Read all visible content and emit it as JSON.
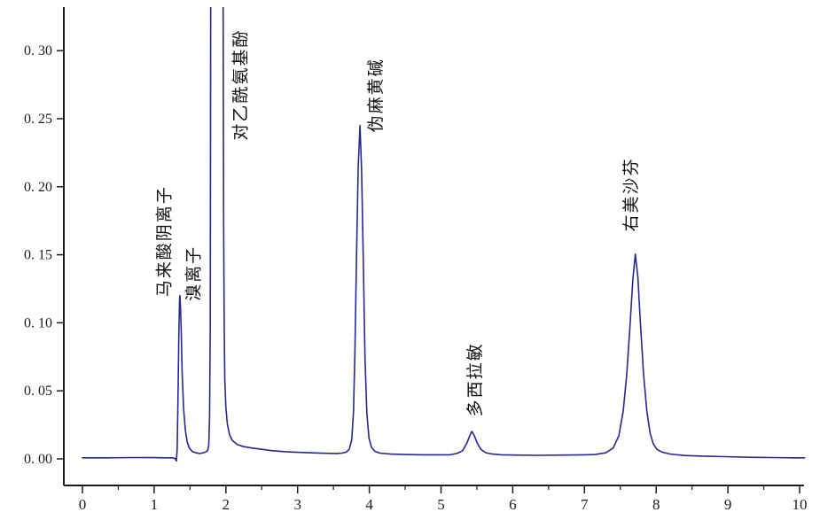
{
  "chart_data": {
    "type": "line",
    "chart_kind": "hplc-chromatogram",
    "title": "",
    "xlabel": "",
    "ylabel": "",
    "xlim": [
      0,
      10
    ],
    "ylim": [
      0,
      0.332
    ],
    "grid": false,
    "legend": "none",
    "line_color": "#262696",
    "axis_color": "#1a1a1a",
    "background": "#ffffff",
    "x_ticks": {
      "major_values": [
        0,
        1,
        2,
        3,
        4,
        5,
        6,
        7,
        8,
        9,
        10
      ],
      "major_labels": [
        "0",
        "1",
        "2",
        "3",
        "4",
        "5",
        "6",
        "7",
        "8",
        "9",
        "10"
      ],
      "minor_step": 0.5
    },
    "y_ticks": {
      "values": [
        0,
        0.05,
        0.1,
        0.15,
        0.2,
        0.25,
        0.3
      ],
      "labels": [
        "0. 00",
        "0. 05",
        "0. 10",
        "0. 15",
        "0. 20",
        "0. 25",
        "0. 30"
      ]
    },
    "peaks": [
      {
        "label": "马来酸阴离子",
        "time": 1.36,
        "height": 0.12,
        "clipped": false,
        "label_x": 1.15,
        "label_y": 0.119
      },
      {
        "label": "溴离子",
        "time": 1.45,
        "height": 0.012,
        "clipped": false,
        "label_x": 1.56,
        "label_y": 0.116
      },
      {
        "label": "对乙酰氨基酚",
        "time": 1.88,
        "height": 0.45,
        "clipped": true,
        "label_x": 2.21,
        "label_y": 0.234
      },
      {
        "label": "伪麻黄碱",
        "time": 3.87,
        "height": 0.245,
        "clipped": false,
        "label_x": 4.1,
        "label_y": 0.24
      },
      {
        "label": "多西拉敏",
        "time": 5.43,
        "height": 0.02,
        "clipped": false,
        "label_x": 5.48,
        "label_y": 0.031
      },
      {
        "label": "右美沙芬",
        "time": 7.71,
        "height": 0.15,
        "clipped": false,
        "label_x": 7.66,
        "label_y": 0.167
      }
    ],
    "curve": [
      [
        0.0,
        0.0008
      ],
      [
        0.35,
        0.0008
      ],
      [
        0.7,
        0.001
      ],
      [
        1.0,
        0.0009
      ],
      [
        1.15,
        0.0008
      ],
      [
        1.25,
        0.0008
      ],
      [
        1.29,
        0.0004
      ],
      [
        1.31,
        -0.0015
      ],
      [
        1.322,
        0.008
      ],
      [
        1.332,
        0.045
      ],
      [
        1.345,
        0.094
      ],
      [
        1.355,
        0.117
      ],
      [
        1.36,
        0.12
      ],
      [
        1.368,
        0.11
      ],
      [
        1.378,
        0.092
      ],
      [
        1.39,
        0.063
      ],
      [
        1.41,
        0.037
      ],
      [
        1.435,
        0.021
      ],
      [
        1.46,
        0.0125
      ],
      [
        1.49,
        0.008
      ],
      [
        1.53,
        0.0055
      ],
      [
        1.58,
        0.0045
      ],
      [
        1.64,
        0.004
      ],
      [
        1.7,
        0.0046
      ],
      [
        1.745,
        0.006
      ],
      [
        1.762,
        0.01
      ],
      [
        1.773,
        0.03
      ],
      [
        1.782,
        0.1
      ],
      [
        1.788,
        0.3
      ],
      [
        1.792,
        0.5
      ],
      [
        1.957,
        0.5
      ],
      [
        1.963,
        0.3
      ],
      [
        1.969,
        0.17
      ],
      [
        1.976,
        0.1
      ],
      [
        1.985,
        0.058
      ],
      [
        2.0,
        0.038
      ],
      [
        2.02,
        0.026
      ],
      [
        2.05,
        0.018
      ],
      [
        2.09,
        0.0135
      ],
      [
        2.16,
        0.0105
      ],
      [
        2.25,
        0.009
      ],
      [
        2.36,
        0.008
      ],
      [
        2.5,
        0.007
      ],
      [
        2.65,
        0.006
      ],
      [
        2.83,
        0.0053
      ],
      [
        3.0,
        0.0048
      ],
      [
        3.2,
        0.0044
      ],
      [
        3.4,
        0.0041
      ],
      [
        3.55,
        0.004
      ],
      [
        3.62,
        0.0042
      ],
      [
        3.68,
        0.005
      ],
      [
        3.72,
        0.007
      ],
      [
        3.755,
        0.014
      ],
      [
        3.78,
        0.035
      ],
      [
        3.8,
        0.08
      ],
      [
        3.822,
        0.15
      ],
      [
        3.845,
        0.215
      ],
      [
        3.87,
        0.245
      ],
      [
        3.893,
        0.212
      ],
      [
        3.917,
        0.143
      ],
      [
        3.94,
        0.075
      ],
      [
        3.965,
        0.034
      ],
      [
        3.995,
        0.0155
      ],
      [
        4.03,
        0.0085
      ],
      [
        4.08,
        0.0055
      ],
      [
        4.15,
        0.0042
      ],
      [
        4.3,
        0.0035
      ],
      [
        4.5,
        0.0032
      ],
      [
        4.75,
        0.003
      ],
      [
        5.0,
        0.003
      ],
      [
        5.12,
        0.003
      ],
      [
        5.22,
        0.004
      ],
      [
        5.3,
        0.006
      ],
      [
        5.36,
        0.0115
      ],
      [
        5.4,
        0.017
      ],
      [
        5.43,
        0.0202
      ],
      [
        5.465,
        0.017
      ],
      [
        5.505,
        0.0115
      ],
      [
        5.555,
        0.007
      ],
      [
        5.625,
        0.0045
      ],
      [
        5.72,
        0.0035
      ],
      [
        5.85,
        0.003
      ],
      [
        6.05,
        0.0028
      ],
      [
        6.35,
        0.0026
      ],
      [
        6.7,
        0.0028
      ],
      [
        7.0,
        0.003
      ],
      [
        7.15,
        0.0032
      ],
      [
        7.3,
        0.0045
      ],
      [
        7.4,
        0.008
      ],
      [
        7.48,
        0.017
      ],
      [
        7.54,
        0.035
      ],
      [
        7.59,
        0.062
      ],
      [
        7.635,
        0.098
      ],
      [
        7.675,
        0.132
      ],
      [
        7.71,
        0.1505
      ],
      [
        7.745,
        0.133
      ],
      [
        7.78,
        0.1
      ],
      [
        7.825,
        0.062
      ],
      [
        7.87,
        0.035
      ],
      [
        7.915,
        0.019
      ],
      [
        7.96,
        0.011
      ],
      [
        8.01,
        0.007
      ],
      [
        8.08,
        0.005
      ],
      [
        8.2,
        0.0035
      ],
      [
        8.4,
        0.0025
      ],
      [
        8.65,
        0.002
      ],
      [
        8.95,
        0.0016
      ],
      [
        9.3,
        0.0012
      ],
      [
        9.6,
        0.001
      ],
      [
        9.9,
        0.0008
      ],
      [
        10.07,
        0.0008
      ]
    ]
  }
}
